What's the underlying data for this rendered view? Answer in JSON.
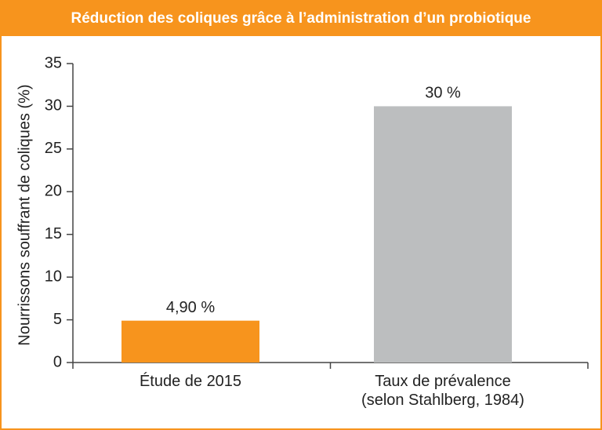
{
  "chart_data": {
    "type": "bar",
    "title": "Réduction des coliques grâce à l’administration d’un probiotique",
    "y_label": "Nourrissons souffrant de coliques (%)",
    "categories": [
      "Étude de 2015",
      "Taux de prévalence\n(selon Stahlberg, 1984)"
    ],
    "values": [
      4.9,
      30
    ],
    "value_labels": [
      "4,90 %",
      "30 %"
    ],
    "colors": [
      "#f7941d",
      "#bcbebf"
    ],
    "ylim": [
      0,
      35
    ],
    "yticks": [
      0,
      5,
      10,
      15,
      20,
      25,
      30,
      35
    ],
    "grid": false
  }
}
